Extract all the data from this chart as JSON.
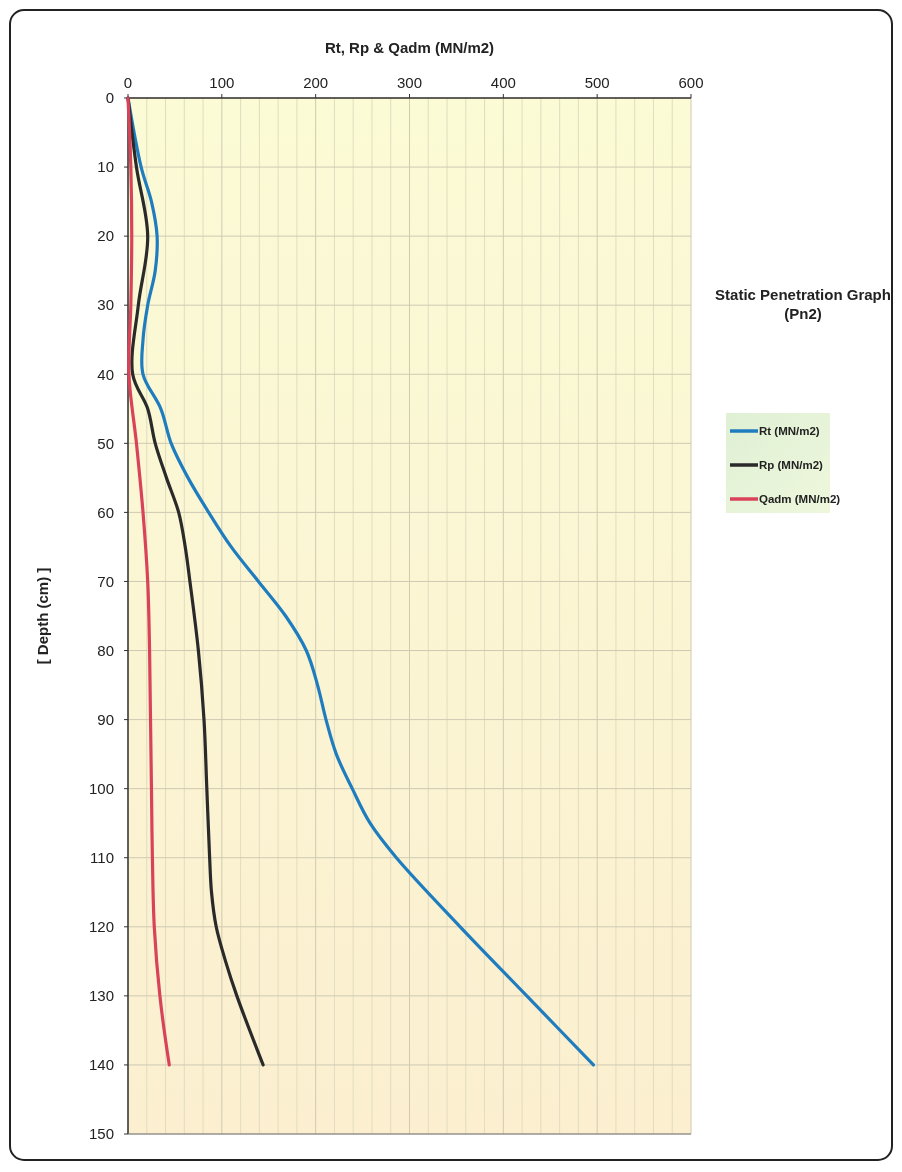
{
  "chart_data": {
    "type": "line",
    "title": "Static Penetration Graph (Pn2)",
    "xlabel": "Rt, Rp & Qadm (MN/m2)",
    "ylabel": "[ Depth (cm) ]",
    "xlim": [
      0,
      600
    ],
    "ylim": [
      150,
      0
    ],
    "xticks": [
      0,
      {
        "value": 20,
        "label": null
      },
      {
        "value": 40,
        "label": null
      },
      {
        "value": 60,
        "label": null
      },
      {
        "value": 80,
        "label": null
      },
      100,
      {
        "value": 120,
        "label": null
      },
      {
        "value": 140,
        "label": null
      },
      {
        "value": 160,
        "label": null
      },
      {
        "value": 180,
        "label": null
      },
      200,
      {
        "value": 220,
        "label": null
      },
      {
        "value": 240,
        "label": null
      },
      {
        "value": 260,
        "label": null
      },
      {
        "value": 280,
        "label": null
      },
      300,
      {
        "value": 320,
        "label": null
      },
      {
        "value": 340,
        "label": null
      },
      {
        "value": 360,
        "label": null
      },
      {
        "value": 380,
        "label": null
      },
      400,
      {
        "value": 420,
        "label": null
      },
      {
        "value": 440,
        "label": null
      },
      {
        "value": 460,
        "label": null
      },
      {
        "value": 480,
        "label": null
      },
      500,
      {
        "value": 520,
        "label": null
      },
      {
        "value": 540,
        "label": null
      },
      {
        "value": 560,
        "label": null
      },
      {
        "value": 580,
        "label": null
      },
      600
    ],
    "yticks": [
      0,
      10,
      20,
      30,
      40,
      50,
      60,
      70,
      80,
      90,
      100,
      110,
      120,
      130,
      140,
      150
    ],
    "grid": true,
    "legend": "right",
    "marker": "none",
    "line_style": "solid",
    "series": [
      {
        "name": "Rt (MN/m2)",
        "color": "#1f7dbf",
        "x": [
          0,
          14,
          25,
          31,
          29,
          21,
          16,
          16,
          35,
          46,
          64,
          86,
          110,
          139,
          168,
          190,
          202,
          211,
          222,
          239,
          258,
          286,
          354,
          425,
          496
        ],
        "values": [
          0,
          10,
          15,
          20,
          25,
          30,
          35,
          40,
          45,
          50,
          55,
          60,
          65,
          70,
          75,
          80,
          85,
          90,
          95,
          100,
          105,
          110,
          120,
          130,
          140
        ]
      },
      {
        "name": "Rp (MN/m2)",
        "color": "#2a2a2a",
        "x": [
          0,
          9,
          21,
          11,
          5,
          21,
          29,
          41,
          54,
          61,
          66,
          75,
          81,
          84,
          87,
          89,
          94,
          104,
          116,
          144
        ],
        "values": [
          0,
          10,
          20,
          30,
          40,
          45,
          50,
          55,
          60,
          65,
          70,
          80,
          90,
          100,
          110,
          115,
          120,
          125,
          130,
          140
        ]
      },
      {
        "name": "Qadm (MN/m2)",
        "color": "#d9435a",
        "x": [
          0,
          3,
          4,
          3,
          1,
          9,
          16,
          21,
          23,
          24,
          25,
          26,
          28,
          34,
          44
        ],
        "values": [
          0,
          10,
          20,
          30,
          40,
          50,
          60,
          70,
          80,
          90,
          100,
          110,
          120,
          130,
          140
        ]
      }
    ]
  }
}
